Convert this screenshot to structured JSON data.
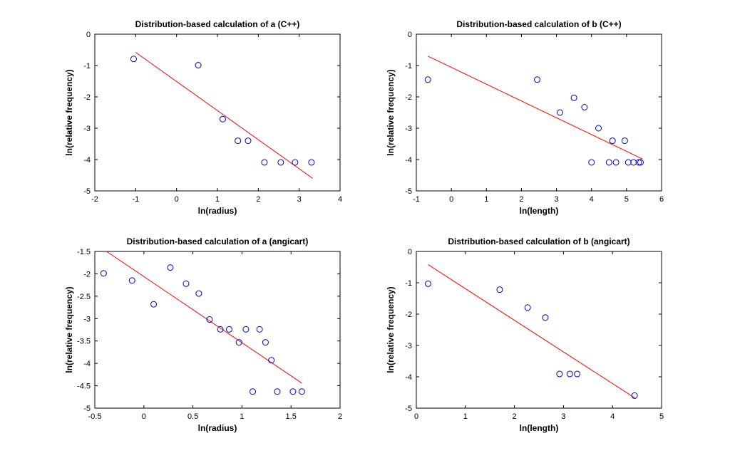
{
  "chart_data": [
    {
      "type": "scatter",
      "title": "Distribution-based calculation of a (C++)",
      "xlabel": "ln(radius)",
      "ylabel": "ln(relative frequency)",
      "xlim": [
        -2,
        4
      ],
      "ylim": [
        -5,
        0
      ],
      "xticks": [
        "-2",
        "-1",
        "0",
        "1",
        "2",
        "3",
        "4"
      ],
      "yticks": [
        "-5",
        "-4",
        "-3",
        "-2",
        "-1",
        "0"
      ],
      "xtick_values": [
        -2,
        -1,
        0,
        1,
        2,
        3,
        4
      ],
      "ytick_values": [
        -5,
        -4,
        -3,
        -2,
        -1,
        0
      ],
      "points": [
        [
          -1.05,
          -0.79
        ],
        [
          0.53,
          -0.99
        ],
        [
          1.13,
          -2.71
        ],
        [
          1.5,
          -3.4
        ],
        [
          1.75,
          -3.4
        ],
        [
          2.15,
          -4.09
        ],
        [
          2.55,
          -4.09
        ],
        [
          2.9,
          -4.09
        ],
        [
          3.3,
          -4.09
        ]
      ],
      "fit_line": [
        [
          -1.0,
          -0.58
        ],
        [
          3.33,
          -4.6
        ]
      ],
      "marker_color": "#0000cc",
      "line_color": "#ff0000"
    },
    {
      "type": "scatter",
      "title": "Distribution-based calculation of b (C++)",
      "xlabel": "ln(length)",
      "ylabel": "ln(relative frequency)",
      "xlim": [
        -1,
        6
      ],
      "ylim": [
        -5,
        0
      ],
      "xticks": [
        "-1",
        "0",
        "1",
        "2",
        "3",
        "4",
        "5",
        "6"
      ],
      "yticks": [
        "-5",
        "-4",
        "-3",
        "-2",
        "-1",
        "0"
      ],
      "xtick_values": [
        -1,
        0,
        1,
        2,
        3,
        4,
        5,
        6
      ],
      "ytick_values": [
        -5,
        -4,
        -3,
        -2,
        -1,
        0
      ],
      "points": [
        [
          -0.67,
          -1.45
        ],
        [
          2.45,
          -1.45
        ],
        [
          3.1,
          -2.5
        ],
        [
          3.5,
          -2.03
        ],
        [
          3.8,
          -2.33
        ],
        [
          4.2,
          -3.0
        ],
        [
          4.6,
          -3.4
        ],
        [
          4.95,
          -3.4
        ],
        [
          4.0,
          -4.09
        ],
        [
          4.5,
          -4.09
        ],
        [
          4.7,
          -4.09
        ],
        [
          5.05,
          -4.09
        ],
        [
          5.2,
          -4.09
        ],
        [
          5.35,
          -4.09
        ],
        [
          5.4,
          -4.09
        ]
      ],
      "fit_line": [
        [
          -0.67,
          -0.7
        ],
        [
          5.45,
          -3.98
        ]
      ],
      "marker_color": "#0000cc",
      "line_color": "#ff0000"
    },
    {
      "type": "scatter",
      "title": "Distribution-based calculation of a (angicart)",
      "xlabel": "ln(radius)",
      "ylabel": "ln(relative frequency)",
      "xlim": [
        -0.5,
        2
      ],
      "ylim": [
        -5,
        -1.5
      ],
      "xticks": [
        "-0.5",
        "0",
        "0.5",
        "1",
        "1.5",
        "2"
      ],
      "yticks": [
        "-5",
        "-4.5",
        "-4",
        "-3.5",
        "-3",
        "-2.5",
        "-2",
        "-1.5"
      ],
      "xtick_values": [
        -0.5,
        0,
        0.5,
        1,
        1.5,
        2
      ],
      "ytick_values": [
        -5,
        -4.5,
        -4,
        -3.5,
        -3,
        -2.5,
        -2,
        -1.5
      ],
      "points": [
        [
          -0.41,
          -1.99
        ],
        [
          -0.12,
          -2.15
        ],
        [
          0.1,
          -2.68
        ],
        [
          0.27,
          -1.86
        ],
        [
          0.43,
          -2.22
        ],
        [
          0.56,
          -2.44
        ],
        [
          0.67,
          -3.02
        ],
        [
          0.78,
          -3.24
        ],
        [
          0.87,
          -3.24
        ],
        [
          0.97,
          -3.53
        ],
        [
          1.04,
          -3.24
        ],
        [
          1.18,
          -3.24
        ],
        [
          1.24,
          -3.53
        ],
        [
          1.3,
          -3.93
        ],
        [
          1.11,
          -4.63
        ],
        [
          1.36,
          -4.63
        ],
        [
          1.52,
          -4.63
        ],
        [
          1.61,
          -4.63
        ]
      ],
      "fit_line": [
        [
          -0.38,
          -1.5
        ],
        [
          1.61,
          -4.44
        ]
      ],
      "marker_color": "#0000cc",
      "line_color": "#ff0000"
    },
    {
      "type": "scatter",
      "title": "Distribution-based calculation of b (angicart)",
      "xlabel": "ln(length)",
      "ylabel": "ln(relative frequency)",
      "xlim": [
        0,
        5
      ],
      "ylim": [
        -5,
        0
      ],
      "xticks": [
        "0",
        "1",
        "2",
        "3",
        "4",
        "5"
      ],
      "yticks": [
        "-5",
        "-4",
        "-3",
        "-2",
        "-1",
        "0"
      ],
      "xtick_values": [
        0,
        1,
        2,
        3,
        4,
        5
      ],
      "ytick_values": [
        -5,
        -4,
        -3,
        -2,
        -1,
        0
      ],
      "points": [
        [
          0.24,
          -1.03
        ],
        [
          1.7,
          -1.22
        ],
        [
          2.27,
          -1.79
        ],
        [
          2.63,
          -2.11
        ],
        [
          2.92,
          -3.91
        ],
        [
          3.13,
          -3.91
        ],
        [
          3.28,
          -3.91
        ],
        [
          4.45,
          -4.6
        ]
      ],
      "fit_line": [
        [
          0.24,
          -0.42
        ],
        [
          4.45,
          -4.67
        ]
      ],
      "marker_color": "#0000cc",
      "line_color": "#ff0000"
    }
  ]
}
